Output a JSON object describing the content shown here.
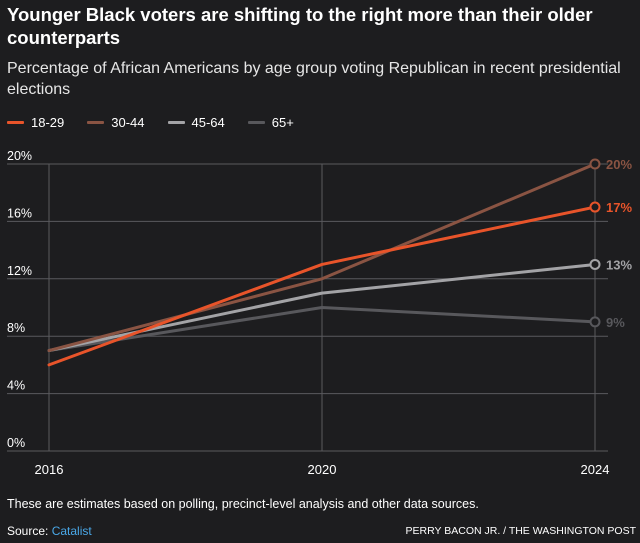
{
  "header": {
    "title": "Younger Black voters are shifting to the right more than their older counterparts",
    "subtitle": "Percentage of African Americans by age group voting Republican in recent presidential elections"
  },
  "footer": {
    "note": "These are estimates based on polling, precinct-level analysis and other data sources.",
    "source_label": "Source:",
    "source_name": "Catalist",
    "credit": "PERRY BACON JR. / THE WASHINGTON POST"
  },
  "colors": {
    "background": "#1d1d1f",
    "grid": "#5a5a5e"
  },
  "chart_data": {
    "type": "line",
    "title": "Younger Black voters are shifting to the right more than their older counterparts",
    "subtitle": "Percentage of African Americans by age group voting Republican in recent presidential elections",
    "xlabel": "",
    "ylabel": "",
    "x": [
      2016,
      2020,
      2024
    ],
    "x_tick_labels": [
      "2016",
      "2020",
      "2024"
    ],
    "ylim": [
      0,
      20
    ],
    "y_ticks": [
      0,
      4,
      8,
      12,
      16,
      20
    ],
    "y_tick_labels": [
      "0%",
      "4%",
      "8%",
      "12%",
      "16%",
      "20%"
    ],
    "grid": true,
    "legend_position": "top-left",
    "series": [
      {
        "name": "18-29",
        "color": "#e8542a",
        "values": [
          6,
          13,
          17
        ],
        "end_label": "17%"
      },
      {
        "name": "30-44",
        "color": "#8a5443",
        "values": [
          7,
          12,
          20
        ],
        "end_label": "20%"
      },
      {
        "name": "45-64",
        "color": "#a3a3a6",
        "values": [
          7,
          11,
          13
        ],
        "end_label": "13%"
      },
      {
        "name": "65+",
        "color": "#58585c",
        "values": [
          7,
          10,
          9
        ],
        "end_label": "9%"
      }
    ]
  }
}
